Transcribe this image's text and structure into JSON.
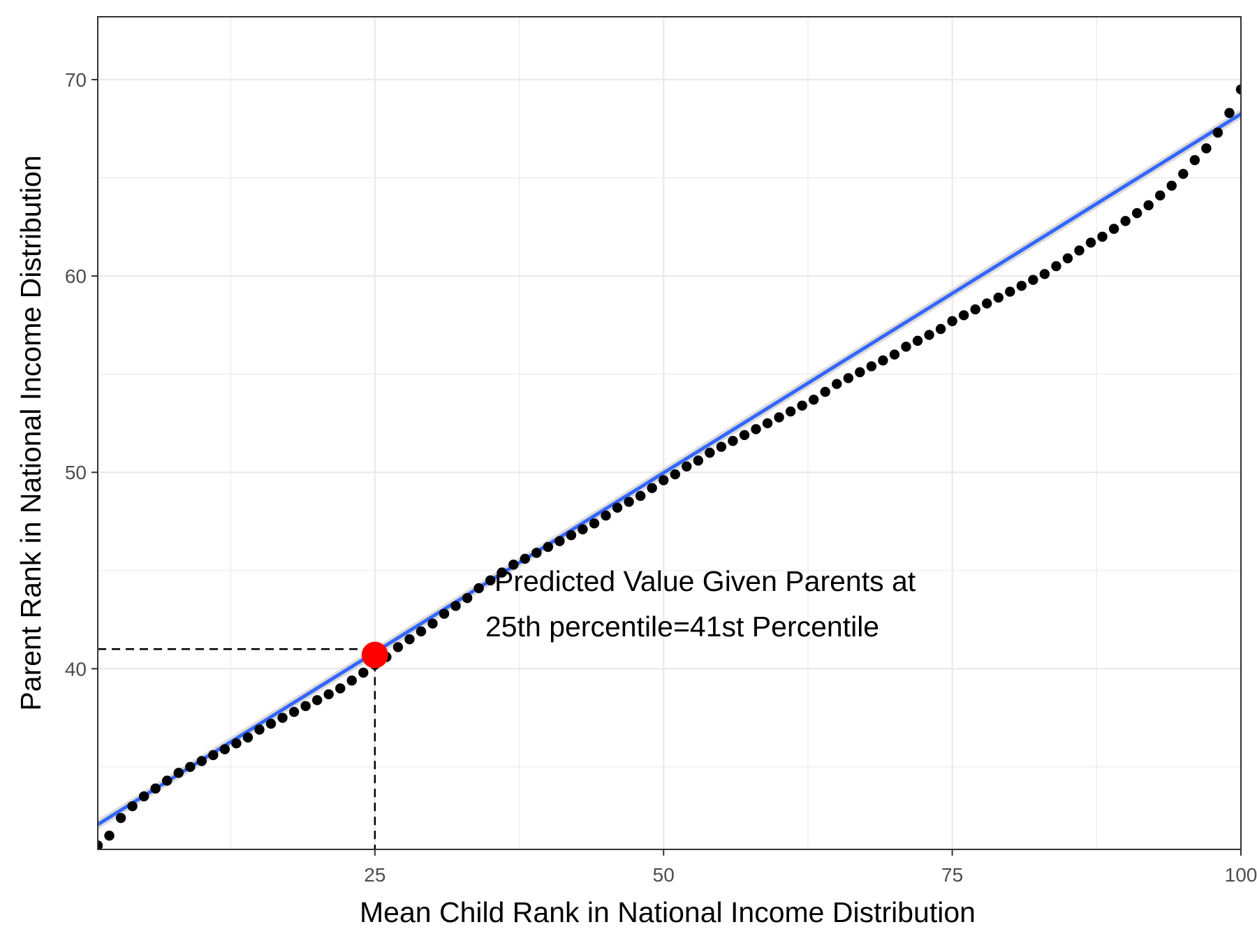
{
  "chart_data": {
    "type": "scatter",
    "title": "",
    "xlabel": "Mean Child Rank in National Income Distribution",
    "ylabel": "Parent Rank in National Income Distribution",
    "xlim": [
      1,
      100
    ],
    "ylim": [
      30.8,
      73.2
    ],
    "x_ticks": [
      25,
      50,
      75,
      100
    ],
    "y_ticks": [
      40,
      50,
      60,
      70
    ],
    "x_minor": [
      12.5,
      37.5,
      62.5,
      87.5
    ],
    "y_minor": [
      35,
      45,
      55,
      65
    ],
    "grid": true,
    "legend": "none",
    "fit_line": {
      "intercept": 31.7,
      "slope": 0.3655,
      "color": "#3366FF"
    },
    "highlight": {
      "x": 25,
      "y": 40.7,
      "color": "#FF0000"
    },
    "reference_y": 41,
    "annotation": [
      "Predicted Value Given Parents at",
      "25th percentile=41st Percentile"
    ],
    "points": {
      "x": [
        1,
        2,
        3,
        4,
        5,
        6,
        7,
        8,
        9,
        10,
        11,
        12,
        13,
        14,
        15,
        16,
        17,
        18,
        19,
        20,
        21,
        22,
        23,
        24,
        25,
        26,
        27,
        28,
        29,
        30,
        31,
        32,
        33,
        34,
        35,
        36,
        37,
        38,
        39,
        40,
        41,
        42,
        43,
        44,
        45,
        46,
        47,
        48,
        49,
        50,
        51,
        52,
        53,
        54,
        55,
        56,
        57,
        58,
        59,
        60,
        61,
        62,
        63,
        64,
        65,
        66,
        67,
        68,
        69,
        70,
        71,
        72,
        73,
        74,
        75,
        76,
        77,
        78,
        79,
        80,
        81,
        82,
        83,
        84,
        85,
        86,
        87,
        88,
        89,
        90,
        91,
        92,
        93,
        94,
        95,
        96,
        97,
        98,
        99,
        100
      ],
      "y": [
        31.0,
        31.5,
        32.4,
        33.0,
        33.5,
        33.9,
        34.3,
        34.7,
        35.0,
        35.3,
        35.6,
        35.9,
        36.2,
        36.5,
        36.9,
        37.2,
        37.5,
        37.8,
        38.1,
        38.4,
        38.7,
        39.0,
        39.4,
        39.8,
        40.2,
        40.6,
        41.1,
        41.5,
        41.9,
        42.3,
        42.8,
        43.2,
        43.6,
        44.1,
        44.5,
        44.9,
        45.3,
        45.6,
        45.9,
        46.2,
        46.5,
        46.8,
        47.1,
        47.4,
        47.8,
        48.2,
        48.5,
        48.8,
        49.2,
        49.6,
        49.9,
        50.3,
        50.6,
        51.0,
        51.3,
        51.6,
        51.9,
        52.2,
        52.5,
        52.8,
        53.1,
        53.4,
        53.7,
        54.1,
        54.5,
        54.8,
        55.1,
        55.4,
        55.7,
        56.0,
        56.4,
        56.7,
        57.0,
        57.3,
        57.7,
        58.0,
        58.3,
        58.6,
        58.9,
        59.2,
        59.5,
        59.8,
        60.1,
        60.5,
        60.9,
        61.3,
        61.7,
        62.0,
        62.4,
        62.8,
        63.2,
        63.6,
        64.1,
        64.6,
        65.2,
        65.9,
        66.5,
        67.3,
        68.3,
        69.5
      ]
    }
  }
}
